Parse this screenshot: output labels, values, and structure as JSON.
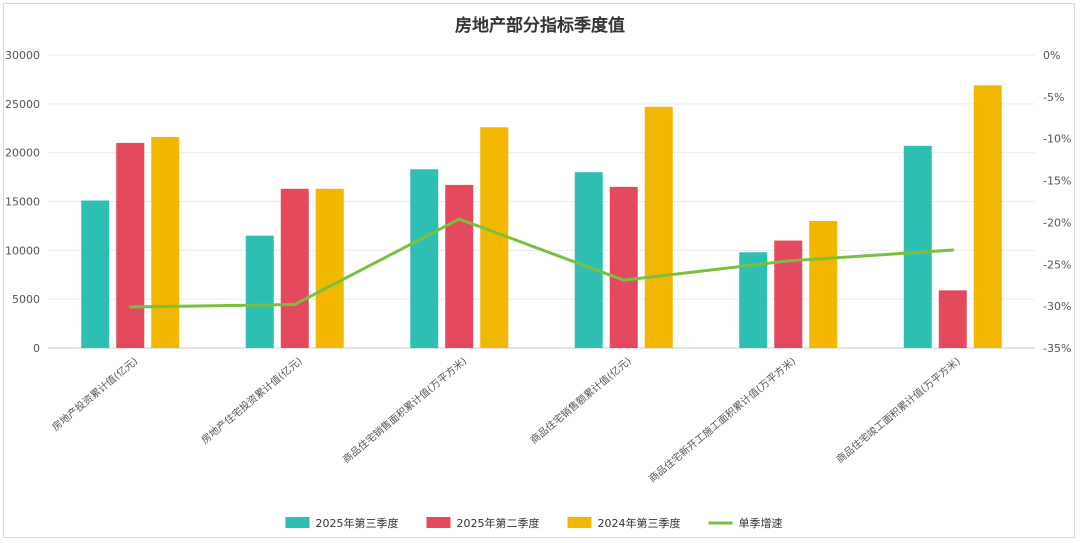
{
  "chart_data": {
    "type": "bar",
    "title": "房地产部分指标季度值",
    "categories": [
      "房地产投资累计值(亿元)",
      "房地产住宅投资累计值(亿元)",
      "商品住宅销售面积累计值(万平方米)",
      "商品住宅销售额累计值(亿元)",
      "商品住宅新开工施工面积累计值(万平方米)",
      "商品住宅竣工面积累计值(万平方米)"
    ],
    "series": [
      {
        "name": "2025年第三季度",
        "color": "#2EBFB3",
        "values": [
          15100,
          11500,
          18300,
          18000,
          9800,
          20700
        ]
      },
      {
        "name": "2025年第二季度",
        "color": "#E34A5E",
        "values": [
          21000,
          16300,
          16700,
          16500,
          11000,
          5900
        ]
      },
      {
        "name": "2024年第三季度",
        "color": "#F2B800",
        "values": [
          21600,
          16300,
          22600,
          24700,
          13000,
          26900
        ]
      }
    ],
    "line_series": {
      "name": "单季增速",
      "color": "#7BBF3F",
      "values": [
        -30.1,
        -29.8,
        -19.6,
        -26.9,
        -24.6,
        -23.3
      ]
    },
    "ylim": [
      0,
      30000
    ],
    "y_ticks": [
      0,
      5000,
      10000,
      15000,
      20000,
      25000,
      30000
    ],
    "y2lim": [
      -35,
      0
    ],
    "y2_ticks": [
      "0%",
      "-5%",
      "-10%",
      "-15%",
      "-20%",
      "-25%",
      "-30%",
      "-35%"
    ],
    "legend_position": "bottom",
    "grid": true
  }
}
